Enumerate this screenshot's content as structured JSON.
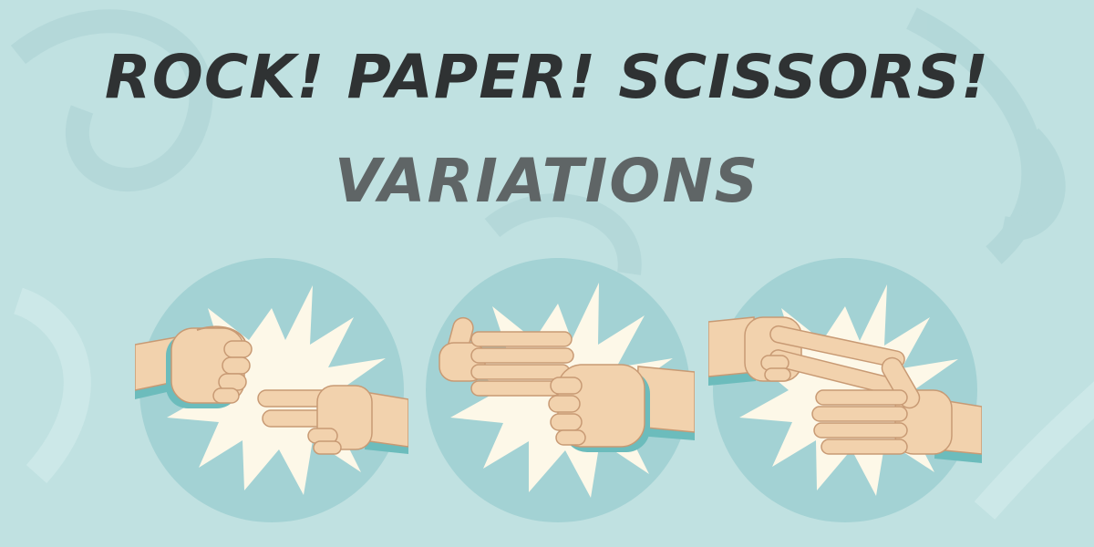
{
  "title": {
    "line1": "ROCK! PAPER! SCISSORS!",
    "line2": "VARIATIONS"
  },
  "scenes": [
    {
      "top_hand": "rock",
      "bottom_hand": "scissors"
    },
    {
      "top_hand": "paper",
      "bottom_hand": "rock"
    },
    {
      "top_hand": "scissors",
      "bottom_hand": "paper"
    }
  ],
  "colors": {
    "background": "#bfe0e0",
    "circle": "#a3d2d4",
    "burst": "#fdf8e8",
    "skin": "#f2d2ad",
    "skin_shadow": "#dfb890",
    "outline": "#c89a74",
    "hand_shadow": "#6cbcbc",
    "title_dark": "#2f3233",
    "title_grey": "#5f6566"
  }
}
